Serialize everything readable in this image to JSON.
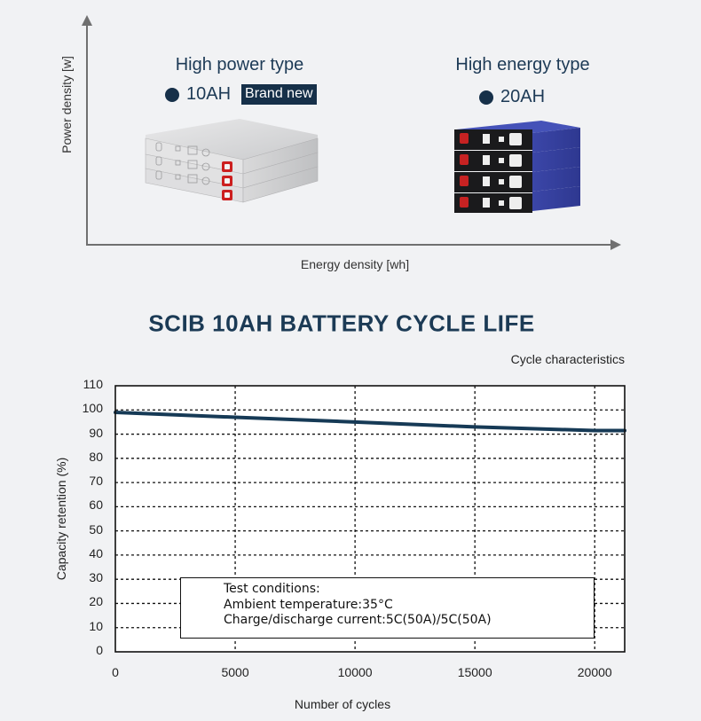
{
  "diagram": {
    "y_axis_label": "Power density [w]",
    "x_axis_label": "Energy density [wh]",
    "high_power": {
      "title": "High power type",
      "capacity": "10AH",
      "badge": "Brand new",
      "image": "silver-battery-stack-3-cells"
    },
    "high_energy": {
      "title": "High energy type",
      "capacity": "20AH",
      "image": "blue-battery-stack-4-cells"
    },
    "colors": {
      "navy": "#163049",
      "axis": "#707070"
    }
  },
  "chart_data": {
    "type": "line",
    "title": "SCIB 10AH BATTERY CYCLE LIFE",
    "subtitle": "Cycle characteristics",
    "xlabel": "Number of cycles",
    "ylabel": "Capacity retention (%)",
    "xlim": [
      0,
      21250
    ],
    "ylim": [
      0,
      110
    ],
    "xticks": [
      "0",
      "5000",
      "10000",
      "15000",
      "20000"
    ],
    "yticks": [
      "0",
      "10",
      "20",
      "30",
      "40",
      "50",
      "60",
      "70",
      "80",
      "90",
      "100",
      "110"
    ],
    "grid": true,
    "grid_style": "dotted",
    "series": [
      {
        "name": "Capacity retention",
        "color": "#163a56",
        "x": [
          0,
          5000,
          10000,
          15000,
          20000,
          21250
        ],
        "y": [
          99,
          97,
          95,
          93,
          91.5,
          91.5
        ]
      }
    ],
    "annotation": {
      "lines": [
        "Test conditions:",
        "Ambient temperature:35°C",
        "Charge/discharge current:5C(50A)/5C(50A)"
      ]
    }
  }
}
